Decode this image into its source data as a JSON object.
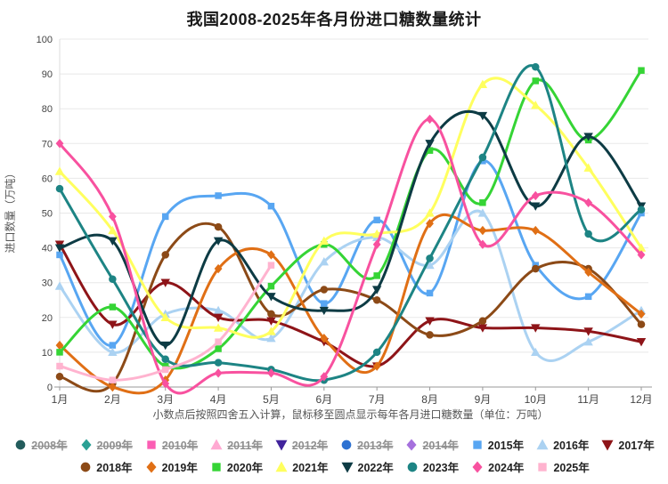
{
  "title": "我国2008-2025年各月份进口糖数量统计",
  "y_axis_title": "进口数量（万吨）",
  "footnote": "小数点后按照四舍五入计算，鼠标移至圆点显示每年各月进口糖数量（单位：万吨）",
  "colors": {
    "grid": "#e8e8e8",
    "axis_line": "#999999",
    "y_axis_line": "#dddddd",
    "tick_text": "#444444",
    "legend_text": "#222222",
    "legend_disabled_text": "#909090"
  },
  "chart_data": {
    "type": "line",
    "smooth": true,
    "grid": true,
    "legend_position": "bottom",
    "ylim": [
      0,
      100
    ],
    "ytick_step": 10,
    "yticks": [
      0,
      10,
      20,
      30,
      40,
      50,
      60,
      70,
      80,
      90,
      100
    ],
    "categories": [
      "1月",
      "2月",
      "3月",
      "4月",
      "5月",
      "6月",
      "7月",
      "8月",
      "9月",
      "10月",
      "11月",
      "12月"
    ],
    "series": [
      {
        "name": "2008年",
        "color": "#235c5c",
        "shape": "circle",
        "hidden": true,
        "values": []
      },
      {
        "name": "2009年",
        "color": "#2aa094",
        "shape": "diamond",
        "hidden": true,
        "values": []
      },
      {
        "name": "2010年",
        "color": "#fb5eb4",
        "shape": "square",
        "hidden": true,
        "values": []
      },
      {
        "name": "2011年",
        "color": "#ffa9d2",
        "shape": "triangle",
        "hidden": true,
        "values": []
      },
      {
        "name": "2012年",
        "color": "#41239c",
        "shape": "triangle-down",
        "hidden": true,
        "values": []
      },
      {
        "name": "2013年",
        "color": "#2e72d2",
        "shape": "circle",
        "hidden": true,
        "values": []
      },
      {
        "name": "2014年",
        "color": "#a570dd",
        "shape": "diamond",
        "hidden": true,
        "values": []
      },
      {
        "name": "2015年",
        "color": "#58a6f2",
        "shape": "square",
        "hidden": false,
        "values": [
          38,
          12,
          49,
          55,
          52,
          24,
          48,
          27,
          65,
          35,
          26,
          50
        ]
      },
      {
        "name": "2016年",
        "color": "#abd2f2",
        "shape": "triangle",
        "hidden": false,
        "values": [
          29,
          10,
          21,
          22,
          14,
          36,
          43,
          35,
          50,
          10,
          13,
          22
        ]
      },
      {
        "name": "2017年",
        "color": "#8e1418",
        "shape": "triangle-down",
        "hidden": false,
        "values": [
          41,
          18,
          30,
          20,
          19,
          13,
          6,
          19,
          17,
          17,
          16,
          13
        ]
      },
      {
        "name": "2018年",
        "color": "#8c4a17",
        "shape": "circle",
        "hidden": false,
        "values": [
          3,
          1,
          38,
          46,
          21,
          28,
          25,
          15,
          19,
          34,
          34,
          18
        ]
      },
      {
        "name": "2019年",
        "color": "#e06f15",
        "shape": "diamond",
        "hidden": false,
        "values": [
          12,
          0,
          2,
          34,
          38,
          14,
          6,
          47,
          45,
          45,
          33,
          21
        ]
      },
      {
        "name": "2020年",
        "color": "#35d435",
        "shape": "square",
        "hidden": false,
        "values": [
          10,
          23,
          6,
          11,
          29,
          41,
          32,
          68,
          53,
          88,
          71,
          91
        ]
      },
      {
        "name": "2021年",
        "color": "#ffff5e",
        "shape": "triangle",
        "hidden": false,
        "values": [
          62,
          45,
          20,
          17,
          16,
          42,
          44,
          50,
          87,
          81,
          63,
          40
        ]
      },
      {
        "name": "2022年",
        "color": "#0d3b44",
        "shape": "triangle-down",
        "hidden": false,
        "values": [
          40,
          42,
          12,
          42,
          26,
          22,
          28,
          70,
          78,
          52,
          72,
          52
        ]
      },
      {
        "name": "2023年",
        "color": "#1d8484",
        "shape": "circle",
        "hidden": false,
        "values": [
          57,
          31,
          8,
          7,
          5,
          2,
          10,
          37,
          66,
          92,
          44,
          51
        ]
      },
      {
        "name": "2024年",
        "color": "#f8519f",
        "shape": "diamond",
        "hidden": false,
        "values": [
          70,
          49,
          1,
          4,
          4,
          3,
          41,
          77,
          41,
          55,
          53,
          38
        ]
      },
      {
        "name": "2025年",
        "color": "#ffb3cf",
        "shape": "square",
        "hidden": false,
        "values": [
          6,
          2,
          5,
          13,
          35
        ]
      }
    ]
  }
}
